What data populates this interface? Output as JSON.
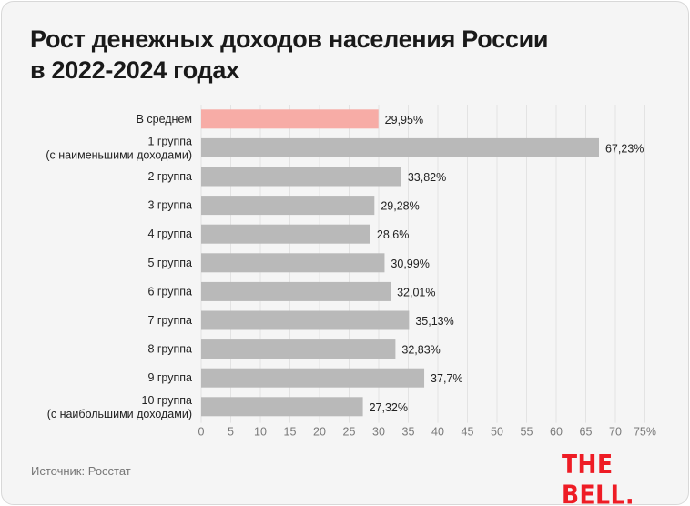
{
  "title_line1": "Рост денежных доходов населения России",
  "title_line2": "в 2022-2024 годах",
  "source": "Источник: Росстат",
  "logo": "THE BELL.",
  "colors": {
    "highlight": "#f7aca6",
    "bar": "#b9b9b9",
    "logo": "#ee1c25"
  },
  "chart_data": {
    "type": "bar",
    "orientation": "horizontal",
    "categories": [
      [
        "В среднем"
      ],
      [
        "1 группа",
        "(с наименьшими доходами)"
      ],
      [
        "2 группа"
      ],
      [
        "3 группа"
      ],
      [
        "4 группа"
      ],
      [
        "5 группа"
      ],
      [
        "6 группа"
      ],
      [
        "7 группа"
      ],
      [
        "8 группа"
      ],
      [
        "9 группа"
      ],
      [
        "10 группа",
        "(с наибольшими доходами)"
      ]
    ],
    "values": [
      29.95,
      67.23,
      33.82,
      29.28,
      28.6,
      30.99,
      32.01,
      35.13,
      32.83,
      37.7,
      27.32
    ],
    "data_labels": [
      "29,95%",
      "67,23%",
      "33,82%",
      "29,28%",
      "28,6%",
      "30,99%",
      "32,01%",
      "35,13%",
      "32,83%",
      "37,7%",
      "27,32%"
    ],
    "xlim": [
      0,
      75
    ],
    "x_ticks": [
      "0",
      "5",
      "10",
      "15",
      "20",
      "25",
      "30",
      "35",
      "40",
      "45",
      "50",
      "55",
      "60",
      "65",
      "70",
      "75%"
    ],
    "grid": true,
    "highlight_index": 0
  }
}
